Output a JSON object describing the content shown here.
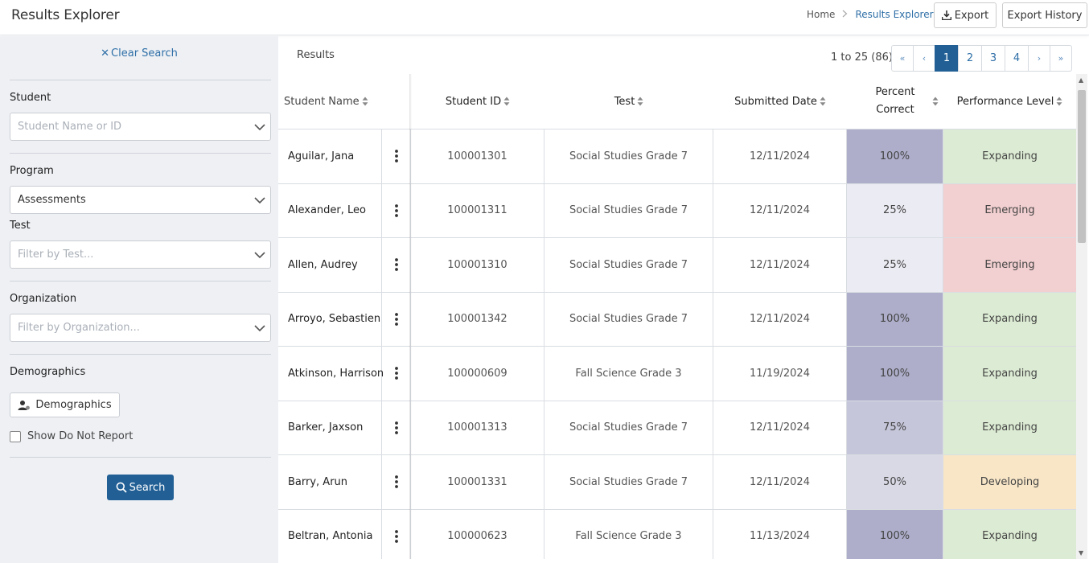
{
  "header": {
    "title": "Results Explorer",
    "breadcrumb": {
      "home": "Home",
      "current": "Results Explorer"
    },
    "export_label": "Export",
    "export_history_label": "Export History"
  },
  "sidebar": {
    "clear_search": "Clear Search",
    "student": {
      "label": "Student",
      "placeholder": "Student Name or ID"
    },
    "program": {
      "label": "Program",
      "value": "Assessments"
    },
    "test": {
      "label": "Test",
      "placeholder": "Filter by Test..."
    },
    "organization": {
      "label": "Organization",
      "placeholder": "Filter by Organization..."
    },
    "demographics": {
      "label": "Demographics",
      "button": "Demographics"
    },
    "show_dnr": "Show Do Not Report",
    "search_button": "Search"
  },
  "results": {
    "label": "Results",
    "range": "1 to 25 (86)",
    "pager": {
      "first": "«",
      "prev": "‹",
      "pages": [
        "1",
        "2",
        "3",
        "4"
      ],
      "active": "1",
      "next": "›",
      "last": "»"
    },
    "columns": {
      "name": "Student Name",
      "id": "Student ID",
      "test": "Test",
      "date": "Submitted Date",
      "pct": "Percent Correct",
      "perf": "Performance Level"
    },
    "rows": [
      {
        "name": "Aguilar, Jana",
        "id": "100001301",
        "test": "Social Studies Grade 7",
        "date": "12/11/2024",
        "pct": "100%",
        "perf": "Expanding"
      },
      {
        "name": "Alexander, Leo",
        "id": "100001311",
        "test": "Social Studies Grade 7",
        "date": "12/11/2024",
        "pct": "25%",
        "perf": "Emerging"
      },
      {
        "name": "Allen, Audrey",
        "id": "100001310",
        "test": "Social Studies Grade 7",
        "date": "12/11/2024",
        "pct": "25%",
        "perf": "Emerging"
      },
      {
        "name": "Arroyo, Sebastien",
        "id": "100001342",
        "test": "Social Studies Grade 7",
        "date": "12/11/2024",
        "pct": "100%",
        "perf": "Expanding"
      },
      {
        "name": "Atkinson, Harrison",
        "id": "100000609",
        "test": "Fall Science Grade 3",
        "date": "11/19/2024",
        "pct": "100%",
        "perf": "Expanding"
      },
      {
        "name": "Barker, Jaxson",
        "id": "100001313",
        "test": "Social Studies Grade 7",
        "date": "12/11/2024",
        "pct": "75%",
        "perf": "Expanding"
      },
      {
        "name": "Barry, Arun",
        "id": "100001331",
        "test": "Social Studies Grade 7",
        "date": "12/11/2024",
        "pct": "50%",
        "perf": "Developing"
      },
      {
        "name": "Beltran, Antonia",
        "id": "100000623",
        "test": "Fall Science Grade 3",
        "date": "11/13/2024",
        "pct": "100%",
        "perf": "Expanding"
      }
    ]
  },
  "colors": {
    "accent": "#215f95",
    "link": "#2f6fa7",
    "pct_100": "#aeaecb",
    "pct_75": "#c6c6da",
    "pct_50": "#d9d9e6",
    "pct_25": "#ebebf3",
    "perf_expanding": "#dcebd3",
    "perf_emerging": "#f2cfd0",
    "perf_developing": "#f8e6c7"
  }
}
